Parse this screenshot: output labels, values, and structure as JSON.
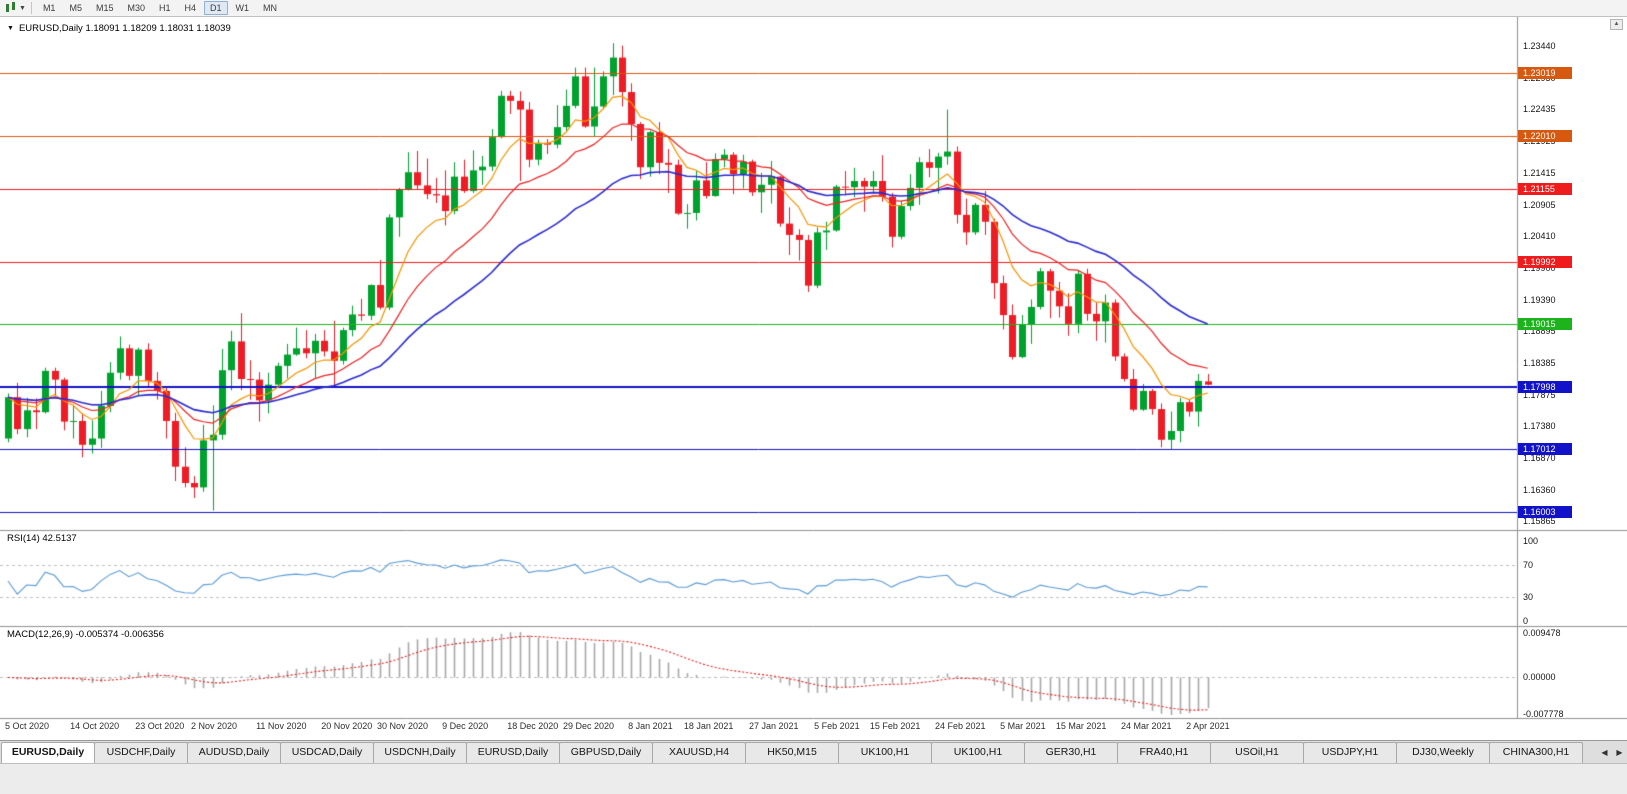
{
  "toolbar": {
    "timeframes": [
      "M1",
      "M5",
      "M15",
      "M30",
      "H1",
      "H4",
      "D1",
      "W1",
      "MN"
    ],
    "active_timeframe": "D1"
  },
  "chart": {
    "collapse_icon": "▼",
    "title": "EURUSD,Daily 1.18091 1.18209 1.18031 1.18039",
    "symbol": "EURUSD",
    "period": "Daily",
    "open": "1.18091",
    "high": "1.18209",
    "low": "1.18031",
    "close": "1.18039",
    "scroll_up_icon": "▲"
  },
  "indicators": {
    "rsi_label": "RSI(14) 42.5137",
    "macd_label": "MACD(12,26,9) -0.005374 -0.006356"
  },
  "tabs": {
    "items": [
      "EURUSD,Daily",
      "USDCHF,Daily",
      "AUDUSD,Daily",
      "USDCAD,Daily",
      "USDCNH,Daily",
      "EURUSD,Daily",
      "GBPUSD,Daily",
      "XAUUSD,H4",
      "HK50,M15",
      "UK100,H1",
      "UK100,H1",
      "GER30,H1",
      "FRA40,H1",
      "USOil,H1",
      "USDJPY,H1",
      "DJ30,Weekly",
      "CHINA300,H1"
    ],
    "active_index": 0,
    "scroll_left_icon": "◀",
    "scroll_right_icon": "▶"
  },
  "chart_data": {
    "type": "candlestick",
    "symbol": "EURUSD",
    "timeframe": "Daily",
    "ylim": [
      1.1572,
      1.2378
    ],
    "y_ticks": [
      {
        "value": 1.2344,
        "label": "1.23440"
      },
      {
        "value": 1.2293,
        "label": "1.22930"
      },
      {
        "value": 1.22435,
        "label": "1.22435"
      },
      {
        "value": 1.21925,
        "label": "1.21925"
      },
      {
        "value": 1.21415,
        "label": "1.21415"
      },
      {
        "value": 1.20905,
        "label": "1.20905"
      },
      {
        "value": 1.2041,
        "label": "1.20410"
      },
      {
        "value": 1.199,
        "label": "1.19900"
      },
      {
        "value": 1.1939,
        "label": "1.19390"
      },
      {
        "value": 1.18895,
        "label": "1.18895"
      },
      {
        "value": 1.18385,
        "label": "1.18385"
      },
      {
        "value": 1.17875,
        "label": "1.17875"
      },
      {
        "value": 1.1738,
        "label": "1.17380"
      },
      {
        "value": 1.1687,
        "label": "1.16870"
      },
      {
        "value": 1.1636,
        "label": "1.16360"
      },
      {
        "value": 1.15865,
        "label": "1.15865"
      }
    ],
    "x_ticks": [
      {
        "index": 0,
        "label": "5 Oct 2020"
      },
      {
        "index": 7,
        "label": "14 Oct 2020"
      },
      {
        "index": 14,
        "label": "23 Oct 2020"
      },
      {
        "index": 20,
        "label": "2 Nov 2020"
      },
      {
        "index": 27,
        "label": "11 Nov 2020"
      },
      {
        "index": 34,
        "label": "20 Nov 2020"
      },
      {
        "index": 40,
        "label": "30 Nov 2020"
      },
      {
        "index": 47,
        "label": "9 Dec 2020"
      },
      {
        "index": 54,
        "label": "18 Dec 2020"
      },
      {
        "index": 60,
        "label": "29 Dec 2020"
      },
      {
        "index": 67,
        "label": "8 Jan 2021"
      },
      {
        "index": 73,
        "label": "18 Jan 2021"
      },
      {
        "index": 80,
        "label": "27 Jan 2021"
      },
      {
        "index": 87,
        "label": "5 Feb 2021"
      },
      {
        "index": 93,
        "label": "15 Feb 2021"
      },
      {
        "index": 100,
        "label": "24 Feb 2021"
      },
      {
        "index": 107,
        "label": "5 Mar 2021"
      },
      {
        "index": 113,
        "label": "15 Mar 2021"
      },
      {
        "index": 120,
        "label": "24 Mar 2021"
      },
      {
        "index": 127,
        "label": "2 Apr 2021"
      }
    ],
    "hlines": [
      {
        "price": 1.23019,
        "label": "1.23019",
        "color": "#d7590f",
        "width": 1
      },
      {
        "price": 1.2201,
        "label": "1.22010",
        "color": "#d7590f",
        "width": 1
      },
      {
        "price": 1.21155,
        "label": "1.21155",
        "color": "#ee1c1c",
        "width": 1
      },
      {
        "price": 1.19992,
        "label": "1.19992",
        "color": "#ee1c1c",
        "width": 1
      },
      {
        "price": 1.19015,
        "label": "1.19015",
        "color": "#1db31d",
        "width": 1
      },
      {
        "price": 1.17998,
        "label": "1.17998",
        "color": "#1212c8",
        "width": 2
      },
      {
        "price": 1.17012,
        "label": "1.17012",
        "color": "#1212c8",
        "width": 1
      },
      {
        "price": 1.16003,
        "label": "1.16003",
        "color": "#1212c8",
        "width": 1
      }
    ],
    "moving_averages": [
      {
        "period": 8,
        "method": "ema",
        "color": "#f79400",
        "width": 1.2
      },
      {
        "period": 17,
        "method": "ema",
        "color": "#ee2222",
        "width": 1.2
      },
      {
        "period": 34,
        "method": "ema",
        "color": "#2b2bd0",
        "width": 1.6
      }
    ],
    "colors": {
      "up": "#00a22e",
      "down": "#ee1c25",
      "background": "#ffffff"
    },
    "ohlc": [
      [
        1.1718,
        1.179,
        1.1712,
        1.1784
      ],
      [
        1.1784,
        1.1807,
        1.1725,
        1.1733
      ],
      [
        1.1733,
        1.1783,
        1.172,
        1.1763
      ],
      [
        1.1763,
        1.1782,
        1.1733,
        1.176
      ],
      [
        1.176,
        1.1831,
        1.1758,
        1.1826
      ],
      [
        1.1826,
        1.1831,
        1.1785,
        1.1812
      ],
      [
        1.1812,
        1.1815,
        1.1731,
        1.1745
      ],
      [
        1.1745,
        1.1772,
        1.1718,
        1.1746
      ],
      [
        1.1746,
        1.1758,
        1.1688,
        1.1708
      ],
      [
        1.1708,
        1.1747,
        1.1694,
        1.1718
      ],
      [
        1.1718,
        1.1794,
        1.1703,
        1.177
      ],
      [
        1.177,
        1.184,
        1.176,
        1.1823
      ],
      [
        1.1823,
        1.1881,
        1.1812,
        1.1862
      ],
      [
        1.1862,
        1.1868,
        1.1811,
        1.1818
      ],
      [
        1.1818,
        1.1863,
        1.1786,
        1.186
      ],
      [
        1.186,
        1.187,
        1.18,
        1.181
      ],
      [
        1.181,
        1.1824,
        1.178,
        1.1794
      ],
      [
        1.1794,
        1.18,
        1.1718,
        1.1746
      ],
      [
        1.1746,
        1.1759,
        1.165,
        1.1673
      ],
      [
        1.1673,
        1.1704,
        1.164,
        1.1647
      ],
      [
        1.1647,
        1.1658,
        1.1623,
        1.164
      ],
      [
        1.164,
        1.174,
        1.1633,
        1.1715
      ],
      [
        1.1715,
        1.1771,
        1.1603,
        1.1724
      ],
      [
        1.1724,
        1.1861,
        1.1716,
        1.1827
      ],
      [
        1.1827,
        1.189,
        1.1795,
        1.1873
      ],
      [
        1.1873,
        1.1918,
        1.1795,
        1.1813
      ],
      [
        1.1813,
        1.1843,
        1.178,
        1.1812
      ],
      [
        1.1812,
        1.1824,
        1.1745,
        1.1779
      ],
      [
        1.1779,
        1.1823,
        1.1758,
        1.1804
      ],
      [
        1.1804,
        1.1839,
        1.1799,
        1.1834
      ],
      [
        1.1834,
        1.1869,
        1.1814,
        1.1852
      ],
      [
        1.1852,
        1.1895,
        1.185,
        1.1862
      ],
      [
        1.1862,
        1.1891,
        1.1846,
        1.1854
      ],
      [
        1.1854,
        1.1885,
        1.1815,
        1.1874
      ],
      [
        1.1874,
        1.1891,
        1.1849,
        1.1857
      ],
      [
        1.1857,
        1.1906,
        1.18,
        1.1842
      ],
      [
        1.1842,
        1.1895,
        1.1836,
        1.1891
      ],
      [
        1.1891,
        1.193,
        1.1881,
        1.1916
      ],
      [
        1.1916,
        1.1941,
        1.1906,
        1.1914
      ],
      [
        1.1914,
        1.1964,
        1.1907,
        1.1963
      ],
      [
        1.1963,
        1.2003,
        1.1924,
        1.1927
      ],
      [
        1.1927,
        1.2076,
        1.1923,
        1.2071
      ],
      [
        1.2071,
        1.2118,
        1.204,
        1.2115
      ],
      [
        1.2115,
        1.2175,
        1.2114,
        1.2143
      ],
      [
        1.2143,
        1.2177,
        1.2116,
        1.2122
      ],
      [
        1.2122,
        1.2165,
        1.21,
        1.2108
      ],
      [
        1.2108,
        1.2134,
        1.2094,
        1.2106
      ],
      [
        1.2106,
        1.2146,
        1.2058,
        1.2081
      ],
      [
        1.2081,
        1.2159,
        1.2076,
        1.2136
      ],
      [
        1.2136,
        1.2163,
        1.211,
        1.2113
      ],
      [
        1.2113,
        1.2178,
        1.211,
        1.2146
      ],
      [
        1.2146,
        1.2169,
        1.2123,
        1.2152
      ],
      [
        1.2152,
        1.2212,
        1.2145,
        1.2199
      ],
      [
        1.2199,
        1.2273,
        1.2197,
        1.2265
      ],
      [
        1.2265,
        1.2273,
        1.2236,
        1.2257
      ],
      [
        1.2257,
        1.2272,
        1.2129,
        1.2243
      ],
      [
        1.2243,
        1.2255,
        1.2151,
        1.2163
      ],
      [
        1.2163,
        1.2195,
        1.2154,
        1.219
      ],
      [
        1.219,
        1.2196,
        1.2172,
        1.2187
      ],
      [
        1.2187,
        1.225,
        1.2181,
        1.2215
      ],
      [
        1.2215,
        1.2275,
        1.2209,
        1.2249
      ],
      [
        1.2249,
        1.231,
        1.2245,
        1.2296
      ],
      [
        1.2296,
        1.231,
        1.2214,
        1.2216
      ],
      [
        1.2216,
        1.231,
        1.22,
        1.2248
      ],
      [
        1.2248,
        1.2304,
        1.2245,
        1.2296
      ],
      [
        1.2296,
        1.2349,
        1.2266,
        1.2326
      ],
      [
        1.2326,
        1.2345,
        1.2248,
        1.2271
      ],
      [
        1.2271,
        1.2285,
        1.2193,
        1.222
      ],
      [
        1.222,
        1.2223,
        1.2132,
        1.2151
      ],
      [
        1.2151,
        1.2209,
        1.2136,
        1.2207
      ],
      [
        1.2207,
        1.2223,
        1.214,
        1.2158
      ],
      [
        1.2158,
        1.218,
        1.211,
        1.2155
      ],
      [
        1.2155,
        1.2163,
        1.2075,
        1.2077
      ],
      [
        1.2077,
        1.2092,
        1.2053,
        1.2078
      ],
      [
        1.2078,
        1.2145,
        1.2066,
        1.213
      ],
      [
        1.213,
        1.2159,
        1.2101,
        1.2105
      ],
      [
        1.2105,
        1.2173,
        1.2104,
        1.2164
      ],
      [
        1.2164,
        1.218,
        1.2151,
        1.2171
      ],
      [
        1.2171,
        1.2175,
        1.2108,
        1.214
      ],
      [
        1.214,
        1.2171,
        1.2117,
        1.216
      ],
      [
        1.216,
        1.2163,
        1.2105,
        1.2111
      ],
      [
        1.2111,
        1.2142,
        1.2078,
        1.2123
      ],
      [
        1.2123,
        1.2161,
        1.2093,
        1.2136
      ],
      [
        1.2136,
        1.2137,
        1.2056,
        1.2061
      ],
      [
        1.2061,
        1.2087,
        1.2011,
        1.2043
      ],
      [
        1.2043,
        1.2052,
        1.2002,
        1.2035
      ],
      [
        1.2035,
        1.2043,
        1.1952,
        1.1962
      ],
      [
        1.1962,
        1.2055,
        1.1958,
        1.2047
      ],
      [
        1.2047,
        1.2064,
        1.2019,
        1.205
      ],
      [
        1.205,
        1.2123,
        1.2048,
        1.212
      ],
      [
        1.212,
        1.2145,
        1.2106,
        1.2119
      ],
      [
        1.2119,
        1.215,
        1.2103,
        1.2129
      ],
      [
        1.2129,
        1.2134,
        1.208,
        1.212
      ],
      [
        1.212,
        1.2145,
        1.2109,
        1.2129
      ],
      [
        1.2129,
        1.217,
        1.2096,
        1.2104
      ],
      [
        1.2104,
        1.211,
        1.2023,
        1.204
      ],
      [
        1.204,
        1.2097,
        1.2036,
        1.2089
      ],
      [
        1.2089,
        1.214,
        1.2082,
        1.2118
      ],
      [
        1.2118,
        1.2167,
        1.2091,
        1.2159
      ],
      [
        1.2159,
        1.218,
        1.2135,
        1.215
      ],
      [
        1.215,
        1.2174,
        1.2109,
        1.2168
      ],
      [
        1.2168,
        1.2243,
        1.2155,
        1.2176
      ],
      [
        1.2176,
        1.2184,
        1.2061,
        1.2075
      ],
      [
        1.2075,
        1.2101,
        1.2027,
        1.2047
      ],
      [
        1.2047,
        1.2094,
        1.2043,
        1.2091
      ],
      [
        1.2091,
        1.2113,
        1.2043,
        1.2064
      ],
      [
        1.2064,
        1.2069,
        1.1941,
        1.1966
      ],
      [
        1.1966,
        1.1978,
        1.1892,
        1.1915
      ],
      [
        1.1915,
        1.1932,
        1.1844,
        1.1848
      ],
      [
        1.1848,
        1.1915,
        1.1846,
        1.19
      ],
      [
        1.19,
        1.194,
        1.1869,
        1.1928
      ],
      [
        1.1928,
        1.199,
        1.1924,
        1.1985
      ],
      [
        1.1985,
        1.1989,
        1.191,
        1.1954
      ],
      [
        1.1954,
        1.1968,
        1.1911,
        1.1929
      ],
      [
        1.1929,
        1.195,
        1.1882,
        1.1901
      ],
      [
        1.1901,
        1.1986,
        1.1886,
        1.1981
      ],
      [
        1.1981,
        1.1989,
        1.1906,
        1.1917
      ],
      [
        1.1917,
        1.1935,
        1.1874,
        1.1905
      ],
      [
        1.1905,
        1.1948,
        1.1871,
        1.1935
      ],
      [
        1.1935,
        1.194,
        1.1842,
        1.1849
      ],
      [
        1.1849,
        1.1854,
        1.1809,
        1.1813
      ],
      [
        1.1813,
        1.1829,
        1.1761,
        1.1764
      ],
      [
        1.1764,
        1.1805,
        1.1762,
        1.1794
      ],
      [
        1.1794,
        1.1797,
        1.1756,
        1.1765
      ],
      [
        1.1765,
        1.1774,
        1.1704,
        1.1716
      ],
      [
        1.1716,
        1.1761,
        1.17,
        1.173
      ],
      [
        1.173,
        1.1783,
        1.1712,
        1.1776
      ],
      [
        1.1776,
        1.178,
        1.1753,
        1.1761
      ],
      [
        1.1761,
        1.1821,
        1.1737,
        1.181
      ],
      [
        1.18091,
        1.18209,
        1.18031,
        1.18039
      ]
    ],
    "rsi": {
      "period": 14,
      "current": 42.5137,
      "color": "#5b9bd5",
      "ylim": [
        0,
        100
      ],
      "dashed_levels": [
        70,
        30
      ],
      "y_ticks": [
        {
          "value": 100,
          "label": "100"
        },
        {
          "value": 70,
          "label": "70"
        },
        {
          "value": 30,
          "label": "30"
        },
        {
          "value": 0,
          "label": "0"
        }
      ]
    },
    "macd": {
      "fast": 12,
      "slow": 26,
      "signal": 9,
      "current": -0.005374,
      "signal_current": -0.006356,
      "histogram_color": "#a8a8a8",
      "signal_color": "#f02020",
      "ylim": [
        -0.007778,
        0.009478
      ],
      "y_ticks": [
        {
          "value": 0.009478,
          "label": "0.009478"
        },
        {
          "value": 0,
          "label": "0.00000"
        },
        {
          "value": -0.007778,
          "label": "-0.007778"
        }
      ]
    }
  }
}
